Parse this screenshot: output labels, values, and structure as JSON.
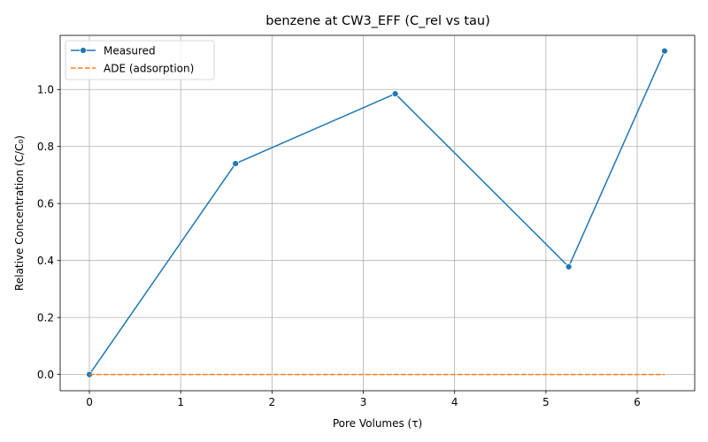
{
  "chart_data": {
    "type": "line",
    "title": "benzene at CW3_EFF (C_rel vs tau)",
    "xlabel": "Pore Volumes (τ)",
    "ylabel": "Relative Concentration (C/C₀)",
    "xlim": [
      -0.32,
      6.63
    ],
    "ylim": [
      -0.057,
      1.19
    ],
    "x_ticks": [
      {
        "value": 0,
        "label": "0"
      },
      {
        "value": 1,
        "label": "1"
      },
      {
        "value": 2,
        "label": "2"
      },
      {
        "value": 3,
        "label": "3"
      },
      {
        "value": 4,
        "label": "4"
      },
      {
        "value": 5,
        "label": "5"
      },
      {
        "value": 6,
        "label": "6"
      }
    ],
    "y_ticks": [
      {
        "value": 0.0,
        "label": "0.0"
      },
      {
        "value": 0.2,
        "label": "0.2"
      },
      {
        "value": 0.4,
        "label": "0.4"
      },
      {
        "value": 0.6,
        "label": "0.6"
      },
      {
        "value": 0.8,
        "label": "0.8"
      },
      {
        "value": 1.0,
        "label": "1.0"
      }
    ],
    "grid": true,
    "legend_position": "top-left",
    "series": [
      {
        "name": "Measured",
        "style": "solid-with-markers",
        "color": "#1f77b4",
        "x": [
          0,
          1.6,
          3.35,
          5.25,
          6.3
        ],
        "y": [
          0.0,
          0.74,
          0.985,
          0.378,
          1.135
        ]
      },
      {
        "name": "ADE (adsorption)",
        "style": "dashed",
        "color": "#ff7f0e",
        "x": [
          0,
          6.3
        ],
        "y": [
          0.0,
          0.0
        ]
      }
    ]
  }
}
